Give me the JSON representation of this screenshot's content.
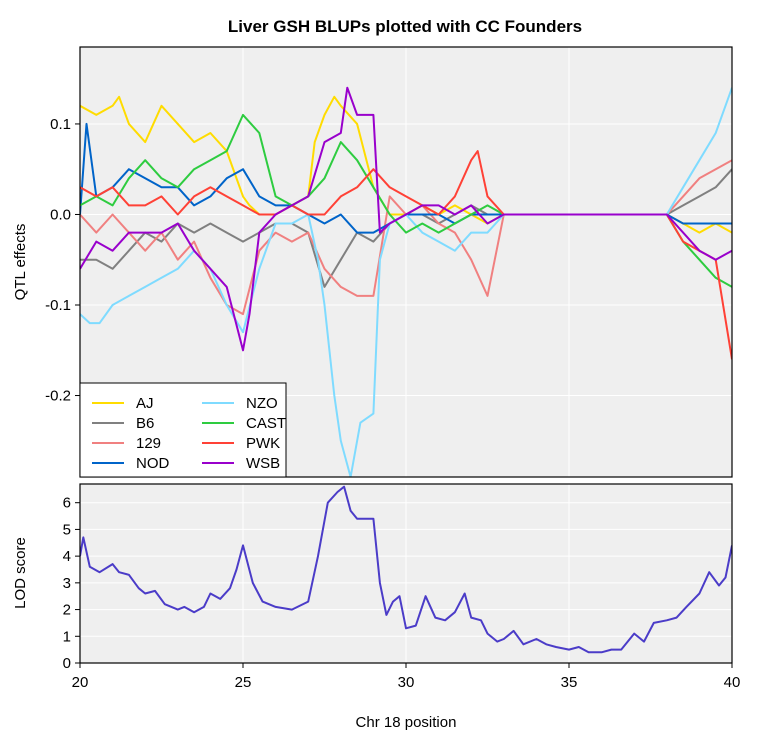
{
  "chart_data": [
    {
      "type": "line",
      "title": "Liver GSH BLUPs plotted with CC Founders",
      "xlabel": "",
      "ylabel": "QTL effects",
      "xlim": [
        20,
        40
      ],
      "ylim": [
        -0.29,
        0.185
      ],
      "yticks": [
        0.1,
        0.0,
        -0.1,
        -0.2
      ],
      "ytick_labels": [
        "0.1",
        "0.0",
        "-0.1",
        "-0.2"
      ],
      "grid": true,
      "legend_position": "bottom-left",
      "series": [
        {
          "name": "AJ",
          "color": "#FFDC00",
          "x": [
            20.0,
            20.5,
            21.0,
            21.2,
            21.5,
            22.0,
            22.5,
            23.0,
            23.5,
            24.0,
            24.5,
            25.0,
            25.2,
            25.5,
            26.0,
            26.5,
            27.0,
            27.2,
            27.5,
            27.8,
            28.0,
            28.5,
            29.0,
            29.5,
            30.0,
            30.5,
            31.0,
            31.5,
            32.0,
            32.5,
            33.0,
            34.0,
            35.0,
            36.0,
            37.0,
            38.0,
            38.5,
            39.0,
            39.5,
            40.0
          ],
          "y": [
            0.12,
            0.11,
            0.12,
            0.13,
            0.1,
            0.08,
            0.12,
            0.1,
            0.08,
            0.09,
            0.07,
            0.02,
            0.01,
            0.0,
            0.0,
            0.01,
            0.02,
            0.08,
            0.11,
            0.13,
            0.12,
            0.1,
            0.03,
            0.0,
            0.0,
            0.01,
            0.0,
            0.01,
            0.0,
            -0.01,
            0.0,
            0.0,
            0.0,
            0.0,
            0.0,
            0.0,
            -0.01,
            -0.02,
            -0.01,
            -0.02
          ]
        },
        {
          "name": "B6",
          "color": "#808080",
          "x": [
            20.0,
            20.5,
            21.0,
            21.5,
            22.0,
            22.5,
            23.0,
            23.5,
            24.0,
            24.5,
            25.0,
            25.5,
            26.0,
            26.5,
            27.0,
            27.5,
            28.0,
            28.5,
            29.0,
            29.5,
            30.0,
            30.5,
            31.0,
            31.5,
            32.0,
            32.5,
            33.0,
            34.0,
            35.0,
            36.0,
            37.0,
            38.0,
            38.5,
            39.0,
            39.5,
            40.0
          ],
          "y": [
            -0.05,
            -0.05,
            -0.06,
            -0.04,
            -0.02,
            -0.03,
            -0.01,
            -0.02,
            -0.01,
            -0.02,
            -0.03,
            -0.02,
            -0.01,
            -0.01,
            -0.02,
            -0.08,
            -0.05,
            -0.02,
            -0.03,
            -0.01,
            0.0,
            0.0,
            -0.01,
            0.0,
            0.01,
            0.0,
            0.0,
            0.0,
            0.0,
            0.0,
            0.0,
            0.0,
            0.01,
            0.02,
            0.03,
            0.05
          ]
        },
        {
          "name": "129",
          "color": "#F08080",
          "x": [
            20.0,
            20.5,
            21.0,
            21.5,
            22.0,
            22.5,
            23.0,
            23.5,
            24.0,
            24.5,
            25.0,
            25.5,
            26.0,
            26.5,
            27.0,
            27.5,
            28.0,
            28.5,
            29.0,
            29.5,
            30.0,
            30.5,
            31.0,
            31.5,
            32.0,
            32.5,
            33.0,
            34.0,
            35.0,
            36.0,
            37.0,
            38.0,
            38.5,
            39.0,
            39.5,
            40.0
          ],
          "y": [
            0.0,
            -0.02,
            0.0,
            -0.02,
            -0.04,
            -0.02,
            -0.05,
            -0.03,
            -0.07,
            -0.1,
            -0.11,
            -0.04,
            -0.02,
            -0.03,
            -0.02,
            -0.06,
            -0.08,
            -0.09,
            -0.09,
            0.02,
            0.0,
            0.01,
            -0.01,
            -0.02,
            -0.05,
            -0.09,
            0.0,
            0.0,
            0.0,
            0.0,
            0.0,
            0.0,
            0.02,
            0.04,
            0.05,
            0.06
          ]
        },
        {
          "name": "NOD",
          "color": "#0064C9",
          "x": [
            20.0,
            20.2,
            20.5,
            21.0,
            21.5,
            22.0,
            22.5,
            23.0,
            23.5,
            24.0,
            24.5,
            25.0,
            25.5,
            26.0,
            26.5,
            27.0,
            27.5,
            28.0,
            28.5,
            29.0,
            29.5,
            30.0,
            30.5,
            31.0,
            31.5,
            32.0,
            32.5,
            33.0,
            34.0,
            35.0,
            36.0,
            37.0,
            38.0,
            38.5,
            39.0,
            39.5,
            40.0
          ],
          "y": [
            0.0,
            0.1,
            0.02,
            0.03,
            0.05,
            0.04,
            0.03,
            0.03,
            0.01,
            0.02,
            0.04,
            0.05,
            0.02,
            0.01,
            0.01,
            0.0,
            -0.01,
            0.0,
            -0.02,
            -0.02,
            -0.01,
            0.0,
            0.0,
            0.0,
            -0.01,
            0.0,
            0.0,
            0.0,
            0.0,
            0.0,
            0.0,
            0.0,
            0.0,
            -0.01,
            -0.01,
            -0.01,
            -0.01
          ]
        },
        {
          "name": "NZO",
          "color": "#7FDBFF",
          "x": [
            20.0,
            20.3,
            20.6,
            21.0,
            21.5,
            22.0,
            22.5,
            23.0,
            23.5,
            24.0,
            24.5,
            25.0,
            25.5,
            26.0,
            26.5,
            27.0,
            27.3,
            27.5,
            27.8,
            28.0,
            28.3,
            28.6,
            29.0,
            29.2,
            29.5,
            30.0,
            30.5,
            31.0,
            31.5,
            32.0,
            32.5,
            33.0,
            34.0,
            35.0,
            36.0,
            37.0,
            38.0,
            38.5,
            39.0,
            39.5,
            40.0
          ],
          "y": [
            -0.11,
            -0.12,
            -0.12,
            -0.1,
            -0.09,
            -0.08,
            -0.07,
            -0.06,
            -0.04,
            -0.06,
            -0.1,
            -0.13,
            -0.06,
            -0.01,
            -0.01,
            0.0,
            -0.05,
            -0.1,
            -0.2,
            -0.25,
            -0.29,
            -0.23,
            -0.22,
            -0.05,
            -0.01,
            0.0,
            -0.02,
            -0.03,
            -0.04,
            -0.02,
            -0.02,
            0.0,
            0.0,
            0.0,
            0.0,
            0.0,
            0.0,
            0.03,
            0.06,
            0.09,
            0.14
          ]
        },
        {
          "name": "CAST",
          "color": "#2ECC40",
          "x": [
            20.0,
            20.5,
            21.0,
            21.5,
            22.0,
            22.5,
            23.0,
            23.5,
            24.0,
            24.5,
            25.0,
            25.5,
            26.0,
            26.5,
            27.0,
            27.5,
            28.0,
            28.5,
            29.0,
            29.5,
            30.0,
            30.5,
            31.0,
            31.5,
            32.0,
            32.5,
            33.0,
            34.0,
            35.0,
            36.0,
            37.0,
            38.0,
            38.5,
            39.0,
            39.5,
            40.0
          ],
          "y": [
            0.01,
            0.02,
            0.01,
            0.04,
            0.06,
            0.04,
            0.03,
            0.05,
            0.06,
            0.07,
            0.11,
            0.09,
            0.02,
            0.01,
            0.02,
            0.04,
            0.08,
            0.06,
            0.03,
            0.0,
            -0.02,
            -0.01,
            -0.02,
            -0.01,
            0.0,
            0.01,
            0.0,
            0.0,
            0.0,
            0.0,
            0.0,
            0.0,
            -0.03,
            -0.05,
            -0.07,
            -0.08
          ]
        },
        {
          "name": "PWK",
          "color": "#FF4136",
          "x": [
            20.0,
            20.5,
            21.0,
            21.5,
            22.0,
            22.5,
            23.0,
            23.5,
            24.0,
            24.5,
            25.0,
            25.5,
            26.0,
            26.5,
            27.0,
            27.5,
            28.0,
            28.5,
            29.0,
            29.5,
            30.0,
            30.5,
            31.0,
            31.5,
            32.0,
            32.2,
            32.5,
            33.0,
            34.0,
            35.0,
            36.0,
            37.0,
            38.0,
            38.5,
            39.0,
            39.5,
            40.0
          ],
          "y": [
            0.03,
            0.02,
            0.03,
            0.01,
            0.01,
            0.02,
            0.0,
            0.02,
            0.03,
            0.02,
            0.01,
            0.0,
            0.0,
            0.01,
            0.0,
            0.0,
            0.02,
            0.03,
            0.05,
            0.03,
            0.02,
            0.01,
            0.0,
            0.02,
            0.06,
            0.07,
            0.02,
            0.0,
            0.0,
            0.0,
            0.0,
            0.0,
            0.0,
            -0.03,
            -0.04,
            -0.05,
            -0.16
          ]
        },
        {
          "name": "WSB",
          "color": "#9900CC",
          "x": [
            20.0,
            20.5,
            21.0,
            21.5,
            22.0,
            22.5,
            23.0,
            23.5,
            24.0,
            24.5,
            25.0,
            25.2,
            25.5,
            26.0,
            26.5,
            27.0,
            27.5,
            28.0,
            28.2,
            28.5,
            29.0,
            29.2,
            29.5,
            30.0,
            30.5,
            31.0,
            31.5,
            32.0,
            32.5,
            33.0,
            34.0,
            35.0,
            36.0,
            37.0,
            38.0,
            38.5,
            39.0,
            39.5,
            40.0
          ],
          "y": [
            -0.06,
            -0.03,
            -0.04,
            -0.02,
            -0.02,
            -0.02,
            -0.01,
            -0.04,
            -0.06,
            -0.08,
            -0.15,
            -0.11,
            -0.02,
            0.0,
            0.01,
            0.02,
            0.08,
            0.09,
            0.14,
            0.11,
            0.11,
            -0.02,
            -0.01,
            0.0,
            0.01,
            0.01,
            0.0,
            0.01,
            -0.01,
            0.0,
            0.0,
            0.0,
            0.0,
            0.0,
            0.0,
            -0.02,
            -0.04,
            -0.05,
            -0.04
          ]
        }
      ]
    },
    {
      "type": "line",
      "title": "",
      "xlabel": "Chr 18 position",
      "ylabel": "LOD score",
      "xlim": [
        20,
        40
      ],
      "ylim": [
        0,
        6.7
      ],
      "xticks": [
        20,
        25,
        30,
        35,
        40
      ],
      "xtick_labels": [
        "20",
        "25",
        "30",
        "35",
        "40"
      ],
      "yticks": [
        0,
        1,
        2,
        3,
        4,
        5,
        6
      ],
      "ytick_labels": [
        "0",
        "1",
        "2",
        "3",
        "4",
        "5",
        "6"
      ],
      "grid": true,
      "series": [
        {
          "color": "#4B3CC8",
          "x": [
            20.0,
            20.1,
            20.3,
            20.6,
            21.0,
            21.2,
            21.5,
            21.8,
            22.0,
            22.3,
            22.6,
            23.0,
            23.2,
            23.5,
            23.8,
            24.0,
            24.3,
            24.6,
            24.8,
            25.0,
            25.3,
            25.6,
            26.0,
            26.5,
            27.0,
            27.3,
            27.6,
            27.9,
            28.1,
            28.3,
            28.5,
            28.8,
            29.0,
            29.2,
            29.4,
            29.6,
            29.8,
            30.0,
            30.3,
            30.6,
            30.9,
            31.2,
            31.5,
            31.8,
            32.0,
            32.3,
            32.5,
            32.8,
            33.0,
            33.3,
            33.6,
            34.0,
            34.3,
            34.6,
            35.0,
            35.3,
            35.6,
            36.0,
            36.3,
            36.6,
            37.0,
            37.3,
            37.6,
            38.0,
            38.3,
            38.6,
            39.0,
            39.3,
            39.6,
            39.8,
            40.0
          ],
          "y": [
            4.0,
            4.7,
            3.6,
            3.4,
            3.7,
            3.4,
            3.3,
            2.8,
            2.6,
            2.7,
            2.2,
            2.0,
            2.1,
            1.9,
            2.1,
            2.6,
            2.4,
            2.8,
            3.5,
            4.4,
            3.0,
            2.3,
            2.1,
            2.0,
            2.3,
            4.0,
            6.0,
            6.4,
            6.6,
            5.7,
            5.4,
            5.4,
            5.4,
            3.0,
            1.8,
            2.3,
            2.5,
            1.3,
            1.4,
            2.5,
            1.7,
            1.6,
            1.9,
            2.6,
            1.7,
            1.6,
            1.1,
            0.8,
            0.9,
            1.2,
            0.7,
            0.9,
            0.7,
            0.6,
            0.5,
            0.6,
            0.4,
            0.4,
            0.5,
            0.5,
            1.1,
            0.8,
            1.5,
            1.6,
            1.7,
            2.1,
            2.6,
            3.4,
            2.9,
            3.2,
            4.4
          ]
        }
      ]
    }
  ]
}
